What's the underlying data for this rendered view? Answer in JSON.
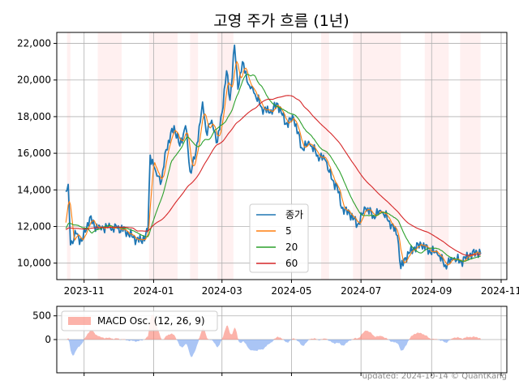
{
  "chart_data": [
    {
      "type": "line",
      "title": "고영 주가 흐름 (1년)",
      "xlabel": "",
      "ylabel": "",
      "ylim": [
        9100,
        22600
      ],
      "grid": true,
      "legend_placement": "lower-center",
      "x_ticks": [
        "2023-11",
        "2024-01",
        "2024-03",
        "2024-05",
        "2024-07",
        "2024-09",
        "2024-11"
      ],
      "y_ticks": [
        "10,000",
        "12,000",
        "14,000",
        "16,000",
        "18,000",
        "20,000",
        "22,000"
      ],
      "shaded_periods": [
        [
          "2023-10-17",
          "2023-10-20"
        ],
        [
          "2023-11-13",
          "2023-12-04"
        ],
        [
          "2023-12-28",
          "2024-01-22"
        ],
        [
          "2024-02-02",
          "2024-02-09"
        ],
        [
          "2024-02-26",
          "2024-03-11"
        ],
        [
          "2024-05-27",
          "2024-06-03"
        ],
        [
          "2024-06-24",
          "2024-08-05"
        ],
        [
          "2024-08-26",
          "2024-09-16"
        ],
        [
          "2024-09-26",
          "2024-10-14"
        ]
      ],
      "colors": {
        "close": "#1f77b4",
        "ma5": "#ff7f0e",
        "ma20": "#2ca02c",
        "ma60": "#d62728",
        "shade": "#fff0f0"
      },
      "keypoints": [
        [
          "2023-10-16",
          13900
        ],
        [
          "2023-10-18",
          14300
        ],
        [
          "2023-10-20",
          11000
        ],
        [
          "2023-10-25",
          11600
        ],
        [
          "2023-10-30",
          11200
        ],
        [
          "2023-11-06",
          12500
        ],
        [
          "2023-11-10",
          12000
        ],
        [
          "2023-11-15",
          12000
        ],
        [
          "2023-11-24",
          11900
        ],
        [
          "2023-11-30",
          11900
        ],
        [
          "2023-12-07",
          11800
        ],
        [
          "2023-12-14",
          11400
        ],
        [
          "2023-12-21",
          11200
        ],
        [
          "2023-12-27",
          11700
        ],
        [
          "2023-12-29",
          15900
        ],
        [
          "2024-01-03",
          15000
        ],
        [
          "2024-01-08",
          14500
        ],
        [
          "2024-01-12",
          16200
        ],
        [
          "2024-01-19",
          17500
        ],
        [
          "2024-01-24",
          16400
        ],
        [
          "2024-01-29",
          17500
        ],
        [
          "2024-02-02",
          15000
        ],
        [
          "2024-02-07",
          16000
        ],
        [
          "2024-02-13",
          18800
        ],
        [
          "2024-02-16",
          17200
        ],
        [
          "2024-02-21",
          17800
        ],
        [
          "2024-02-26",
          16600
        ],
        [
          "2024-03-01",
          18200
        ],
        [
          "2024-03-05",
          20500
        ],
        [
          "2024-03-08",
          18900
        ],
        [
          "2024-03-12",
          21900
        ],
        [
          "2024-03-15",
          19500
        ],
        [
          "2024-03-19",
          21000
        ],
        [
          "2024-03-25",
          19700
        ],
        [
          "2024-03-29",
          19300
        ],
        [
          "2024-04-05",
          18500
        ],
        [
          "2024-04-12",
          18200
        ],
        [
          "2024-04-19",
          18700
        ],
        [
          "2024-04-26",
          17600
        ],
        [
          "2024-05-03",
          17900
        ],
        [
          "2024-05-10",
          16300
        ],
        [
          "2024-05-17",
          16500
        ],
        [
          "2024-05-24",
          15900
        ],
        [
          "2024-05-31",
          15600
        ],
        [
          "2024-06-05",
          14600
        ],
        [
          "2024-06-10",
          14200
        ],
        [
          "2024-06-14",
          13000
        ],
        [
          "2024-06-21",
          12700
        ],
        [
          "2024-06-28",
          12100
        ],
        [
          "2024-07-05",
          13000
        ],
        [
          "2024-07-12",
          12600
        ],
        [
          "2024-07-19",
          12800
        ],
        [
          "2024-07-26",
          12300
        ],
        [
          "2024-08-02",
          11500
        ],
        [
          "2024-08-05",
          9700
        ],
        [
          "2024-08-09",
          10300
        ],
        [
          "2024-08-16",
          10800
        ],
        [
          "2024-08-23",
          11000
        ],
        [
          "2024-08-30",
          10700
        ],
        [
          "2024-09-06",
          10500
        ],
        [
          "2024-09-13",
          9900
        ],
        [
          "2024-09-20",
          10200
        ],
        [
          "2024-09-27",
          10100
        ],
        [
          "2024-10-04",
          10400
        ],
        [
          "2024-10-11",
          10600
        ],
        [
          "2024-10-14",
          10500
        ]
      ],
      "series": [
        {
          "name": "종가"
        },
        {
          "name": "5",
          "window": 5
        },
        {
          "name": "20",
          "window": 20
        },
        {
          "name": "60",
          "window": 60
        }
      ]
    },
    {
      "type": "area",
      "ylim": [
        -700,
        700
      ],
      "y_ticks": [
        "500",
        "0"
      ],
      "legend_placement": "top-left",
      "series": [
        {
          "name": "MACD Osc. (12, 26, 9)",
          "positive_color": "#fa8072",
          "negative_color": "#6495ed"
        }
      ]
    }
  ],
  "footer": "updated: 2024-10-14 © QuantKang"
}
